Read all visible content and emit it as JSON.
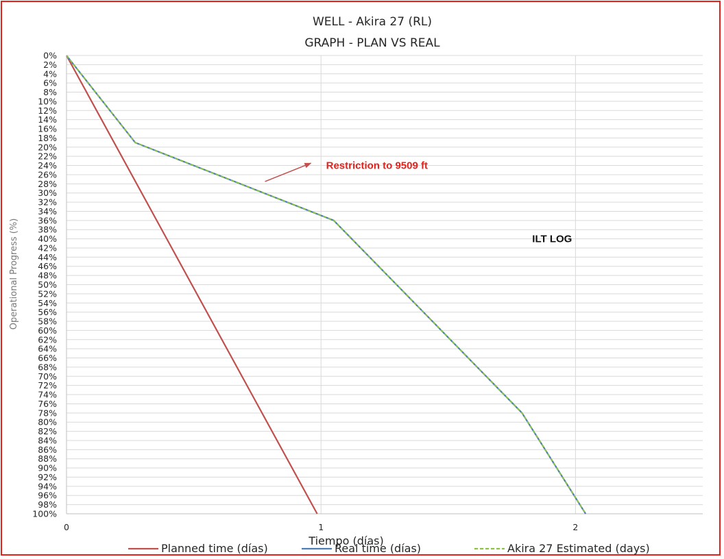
{
  "chart_data": {
    "type": "line",
    "title": "WELL -  Akira 27 (RL)",
    "subtitle": "GRAPH  - PLAN VS REAL",
    "xlabel": "Tiempo (días)",
    "ylabel": "Operational Progress (%)",
    "xlim": [
      0,
      2.5
    ],
    "ylim": [
      0,
      100
    ],
    "y_inverted": true,
    "x_ticks": [
      0,
      1,
      2
    ],
    "x_tick_labels": [
      "0",
      "1",
      "2"
    ],
    "y_ticks": [
      0,
      2,
      4,
      6,
      8,
      10,
      12,
      14,
      16,
      18,
      20,
      22,
      24,
      26,
      28,
      30,
      32,
      34,
      36,
      38,
      40,
      42,
      44,
      46,
      48,
      50,
      52,
      54,
      56,
      58,
      60,
      62,
      64,
      66,
      68,
      70,
      72,
      74,
      76,
      78,
      80,
      82,
      84,
      86,
      88,
      90,
      92,
      94,
      96,
      98,
      100
    ],
    "y_tick_labels": [
      "0%",
      "2%",
      "4%",
      "6%",
      "8%",
      "10%",
      "12%",
      "14%",
      "16%",
      "18%",
      "20%",
      "22%",
      "24%",
      "26%",
      "28%",
      "30%",
      "32%",
      "34%",
      "36%",
      "38%",
      "40%",
      "42%",
      "44%",
      "46%",
      "48%",
      "50%",
      "52%",
      "54%",
      "56%",
      "58%",
      "60%",
      "62%",
      "64%",
      "66%",
      "68%",
      "70%",
      "72%",
      "74%",
      "76%",
      "78%",
      "80%",
      "82%",
      "84%",
      "86%",
      "88%",
      "90%",
      "92%",
      "94%",
      "96%",
      "98%",
      "100%"
    ],
    "grid": "horizontal every tick, vertical at integer days",
    "legend_position": "bottom",
    "series": [
      {
        "name": "Planned time (días)",
        "color": "#c0504d",
        "dash": "solid",
        "points": [
          [
            0,
            0
          ],
          [
            0.985,
            100
          ]
        ]
      },
      {
        "name": "Real time (días)",
        "color": "#4a7eb5",
        "dash": "solid",
        "points": [
          [
            0,
            0
          ],
          [
            0.27,
            19
          ],
          [
            1.05,
            36
          ],
          [
            1.79,
            78
          ],
          [
            2.04,
            100
          ]
        ]
      },
      {
        "name": "Akira 27 Estimated (days)",
        "color": "#8cc04a",
        "dash": "dashed",
        "points": [
          [
            0,
            0
          ],
          [
            0.27,
            19
          ],
          [
            1.05,
            36
          ],
          [
            1.79,
            78
          ],
          [
            2.04,
            100
          ]
        ]
      }
    ],
    "annotations": [
      {
        "text": "Restriction to 9509 ft",
        "color": "#e8201a",
        "x": 1.02,
        "y": 24,
        "arrow_from": [
          0.78,
          27.5
        ],
        "arrow_to": [
          0.96,
          23.5
        ]
      },
      {
        "text": "ILT LOG",
        "color": "#111111",
        "x": 1.83,
        "y": 40
      }
    ]
  }
}
